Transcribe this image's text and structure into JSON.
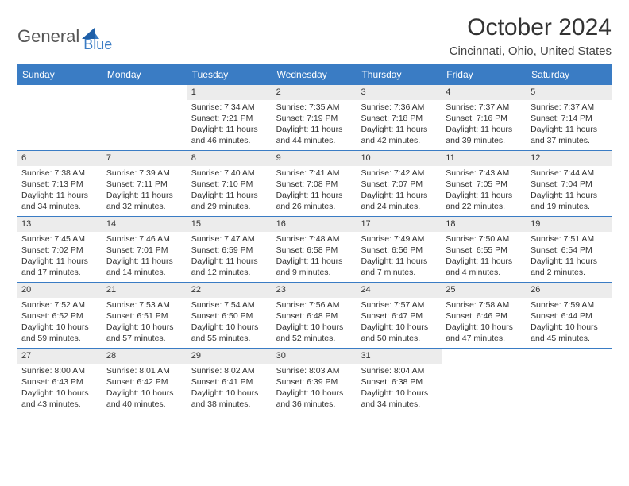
{
  "logo": {
    "text1": "General",
    "text2": "Blue"
  },
  "title": "October 2024",
  "location": "Cincinnati, Ohio, United States",
  "colors": {
    "accent": "#3a7cc4",
    "header_text": "#ffffff",
    "daynum_bg": "#ececec",
    "body_text": "#333333",
    "page_bg": "#ffffff"
  },
  "day_names": [
    "Sunday",
    "Monday",
    "Tuesday",
    "Wednesday",
    "Thursday",
    "Friday",
    "Saturday"
  ],
  "weeks": [
    [
      {
        "n": null
      },
      {
        "n": null
      },
      {
        "n": "1",
        "l1": "Sunrise: 7:34 AM",
        "l2": "Sunset: 7:21 PM",
        "l3": "Daylight: 11 hours",
        "l4": "and 46 minutes."
      },
      {
        "n": "2",
        "l1": "Sunrise: 7:35 AM",
        "l2": "Sunset: 7:19 PM",
        "l3": "Daylight: 11 hours",
        "l4": "and 44 minutes."
      },
      {
        "n": "3",
        "l1": "Sunrise: 7:36 AM",
        "l2": "Sunset: 7:18 PM",
        "l3": "Daylight: 11 hours",
        "l4": "and 42 minutes."
      },
      {
        "n": "4",
        "l1": "Sunrise: 7:37 AM",
        "l2": "Sunset: 7:16 PM",
        "l3": "Daylight: 11 hours",
        "l4": "and 39 minutes."
      },
      {
        "n": "5",
        "l1": "Sunrise: 7:37 AM",
        "l2": "Sunset: 7:14 PM",
        "l3": "Daylight: 11 hours",
        "l4": "and 37 minutes."
      }
    ],
    [
      {
        "n": "6",
        "l1": "Sunrise: 7:38 AM",
        "l2": "Sunset: 7:13 PM",
        "l3": "Daylight: 11 hours",
        "l4": "and 34 minutes."
      },
      {
        "n": "7",
        "l1": "Sunrise: 7:39 AM",
        "l2": "Sunset: 7:11 PM",
        "l3": "Daylight: 11 hours",
        "l4": "and 32 minutes."
      },
      {
        "n": "8",
        "l1": "Sunrise: 7:40 AM",
        "l2": "Sunset: 7:10 PM",
        "l3": "Daylight: 11 hours",
        "l4": "and 29 minutes."
      },
      {
        "n": "9",
        "l1": "Sunrise: 7:41 AM",
        "l2": "Sunset: 7:08 PM",
        "l3": "Daylight: 11 hours",
        "l4": "and 26 minutes."
      },
      {
        "n": "10",
        "l1": "Sunrise: 7:42 AM",
        "l2": "Sunset: 7:07 PM",
        "l3": "Daylight: 11 hours",
        "l4": "and 24 minutes."
      },
      {
        "n": "11",
        "l1": "Sunrise: 7:43 AM",
        "l2": "Sunset: 7:05 PM",
        "l3": "Daylight: 11 hours",
        "l4": "and 22 minutes."
      },
      {
        "n": "12",
        "l1": "Sunrise: 7:44 AM",
        "l2": "Sunset: 7:04 PM",
        "l3": "Daylight: 11 hours",
        "l4": "and 19 minutes."
      }
    ],
    [
      {
        "n": "13",
        "l1": "Sunrise: 7:45 AM",
        "l2": "Sunset: 7:02 PM",
        "l3": "Daylight: 11 hours",
        "l4": "and 17 minutes."
      },
      {
        "n": "14",
        "l1": "Sunrise: 7:46 AM",
        "l2": "Sunset: 7:01 PM",
        "l3": "Daylight: 11 hours",
        "l4": "and 14 minutes."
      },
      {
        "n": "15",
        "l1": "Sunrise: 7:47 AM",
        "l2": "Sunset: 6:59 PM",
        "l3": "Daylight: 11 hours",
        "l4": "and 12 minutes."
      },
      {
        "n": "16",
        "l1": "Sunrise: 7:48 AM",
        "l2": "Sunset: 6:58 PM",
        "l3": "Daylight: 11 hours",
        "l4": "and 9 minutes."
      },
      {
        "n": "17",
        "l1": "Sunrise: 7:49 AM",
        "l2": "Sunset: 6:56 PM",
        "l3": "Daylight: 11 hours",
        "l4": "and 7 minutes."
      },
      {
        "n": "18",
        "l1": "Sunrise: 7:50 AM",
        "l2": "Sunset: 6:55 PM",
        "l3": "Daylight: 11 hours",
        "l4": "and 4 minutes."
      },
      {
        "n": "19",
        "l1": "Sunrise: 7:51 AM",
        "l2": "Sunset: 6:54 PM",
        "l3": "Daylight: 11 hours",
        "l4": "and 2 minutes."
      }
    ],
    [
      {
        "n": "20",
        "l1": "Sunrise: 7:52 AM",
        "l2": "Sunset: 6:52 PM",
        "l3": "Daylight: 10 hours",
        "l4": "and 59 minutes."
      },
      {
        "n": "21",
        "l1": "Sunrise: 7:53 AM",
        "l2": "Sunset: 6:51 PM",
        "l3": "Daylight: 10 hours",
        "l4": "and 57 minutes."
      },
      {
        "n": "22",
        "l1": "Sunrise: 7:54 AM",
        "l2": "Sunset: 6:50 PM",
        "l3": "Daylight: 10 hours",
        "l4": "and 55 minutes."
      },
      {
        "n": "23",
        "l1": "Sunrise: 7:56 AM",
        "l2": "Sunset: 6:48 PM",
        "l3": "Daylight: 10 hours",
        "l4": "and 52 minutes."
      },
      {
        "n": "24",
        "l1": "Sunrise: 7:57 AM",
        "l2": "Sunset: 6:47 PM",
        "l3": "Daylight: 10 hours",
        "l4": "and 50 minutes."
      },
      {
        "n": "25",
        "l1": "Sunrise: 7:58 AM",
        "l2": "Sunset: 6:46 PM",
        "l3": "Daylight: 10 hours",
        "l4": "and 47 minutes."
      },
      {
        "n": "26",
        "l1": "Sunrise: 7:59 AM",
        "l2": "Sunset: 6:44 PM",
        "l3": "Daylight: 10 hours",
        "l4": "and 45 minutes."
      }
    ],
    [
      {
        "n": "27",
        "l1": "Sunrise: 8:00 AM",
        "l2": "Sunset: 6:43 PM",
        "l3": "Daylight: 10 hours",
        "l4": "and 43 minutes."
      },
      {
        "n": "28",
        "l1": "Sunrise: 8:01 AM",
        "l2": "Sunset: 6:42 PM",
        "l3": "Daylight: 10 hours",
        "l4": "and 40 minutes."
      },
      {
        "n": "29",
        "l1": "Sunrise: 8:02 AM",
        "l2": "Sunset: 6:41 PM",
        "l3": "Daylight: 10 hours",
        "l4": "and 38 minutes."
      },
      {
        "n": "30",
        "l1": "Sunrise: 8:03 AM",
        "l2": "Sunset: 6:39 PM",
        "l3": "Daylight: 10 hours",
        "l4": "and 36 minutes."
      },
      {
        "n": "31",
        "l1": "Sunrise: 8:04 AM",
        "l2": "Sunset: 6:38 PM",
        "l3": "Daylight: 10 hours",
        "l4": "and 34 minutes."
      },
      {
        "n": null
      },
      {
        "n": null
      }
    ]
  ]
}
